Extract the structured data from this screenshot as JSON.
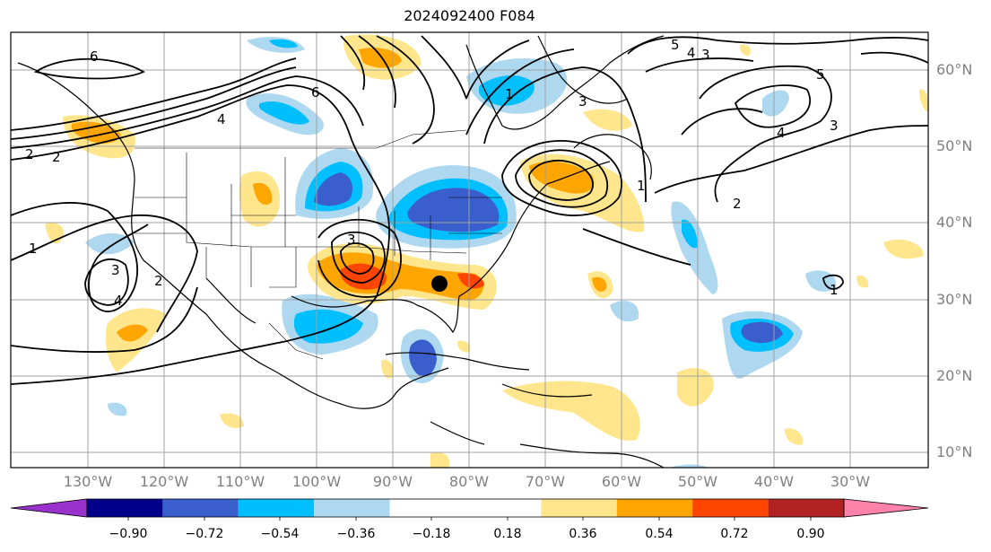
{
  "title": "2024092400 F084",
  "map": {
    "region": "North America / North Atlantic",
    "lon_range": [
      -137,
      -15
    ],
    "lat_range": [
      8,
      65
    ],
    "lon_labels": [
      "130°W",
      "120°W",
      "110°W",
      "100°W",
      "90°W",
      "80°W",
      "70°W",
      "60°W",
      "50°W",
      "40°W",
      "30°W"
    ],
    "lat_labels": [
      "60°N",
      "50°N",
      "40°N",
      "30°N",
      "20°N",
      "10°N"
    ],
    "gridlines": true,
    "marker": {
      "name": "storm-center",
      "lon": -84,
      "lat": 32
    }
  },
  "colorbar": {
    "tick_labels": [
      "−0.90",
      "−0.72",
      "−0.54",
      "−0.36",
      "−0.18",
      "0.18",
      "0.36",
      "0.54",
      "0.72",
      "0.90"
    ],
    "colors": [
      "#9932cc",
      "#00008b",
      "#3a5fcd",
      "#00bfff",
      "#add8f0",
      "#ffffff",
      "#ffe68c",
      "#ffa500",
      "#ff4500",
      "#b22222",
      "#ff82ab"
    ],
    "extend": "both"
  },
  "contour_labels": {
    "values": [
      "6",
      "6",
      "4",
      "2",
      "1",
      "3",
      "4",
      "2",
      "1",
      "3",
      "3",
      "2",
      "1",
      "5",
      "4",
      "3",
      "5",
      "4",
      "3",
      "2",
      "1"
    ]
  }
}
